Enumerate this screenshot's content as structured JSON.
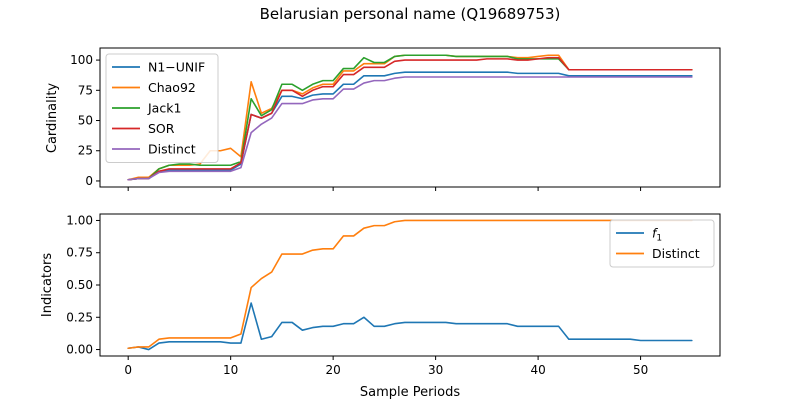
{
  "chart_data": {
    "title": "Belarusian personal name (Q19689753)",
    "xlabel": "Sample Periods",
    "x_ticks": [
      0,
      10,
      20,
      30,
      40,
      50
    ],
    "x_range": [
      -2.75,
      57.75
    ],
    "panels": [
      {
        "type": "line",
        "ylabel": "Cardinality",
        "ylim": [
          -5,
          110
        ],
        "y_ticks": [
          0,
          25,
          50,
          75,
          100
        ],
        "y_tick_labels": [
          "0",
          "25",
          "50",
          "75",
          "100"
        ],
        "show_x_tick_labels": false,
        "legend": "upper-left",
        "series": [
          {
            "name": "N1−UNIF",
            "color": "#1f77b4",
            "values": [
              1,
              2,
              2,
              8,
              9,
              9,
              9,
              9,
              9,
              9,
              9,
              14,
              55,
              52,
              56,
              70,
              70,
              68,
              71,
              72,
              72,
              80,
              80,
              87,
              87,
              87,
              89,
              90,
              90,
              90,
              90,
              90,
              90,
              90,
              90,
              90,
              90,
              90,
              89,
              89,
              89,
              89,
              89,
              87,
              87,
              87,
              87,
              87,
              87,
              87,
              87,
              87,
              87,
              87,
              87,
              87
            ]
          },
          {
            "name": "Chao92",
            "color": "#ff7f0e",
            "values": [
              1,
              3,
              3,
              10,
              13,
              13,
              13,
              14,
              25,
              25,
              27,
              20,
              82,
              56,
              60,
              75,
              75,
              72,
              77,
              80,
              80,
              91,
              91,
              97,
              97,
              97,
              103,
              104,
              104,
              104,
              104,
              104,
              103,
              103,
              103,
              103,
              103,
              103,
              102,
              102,
              103,
              104,
              104,
              92,
              92,
              92,
              92,
              92,
              92,
              92,
              92,
              92,
              92,
              92,
              92,
              92
            ]
          },
          {
            "name": "Jack1",
            "color": "#2ca02c",
            "values": [
              1,
              2,
              2,
              10,
              13,
              14,
              14,
              13,
              13,
              13,
              13,
              16,
              68,
              54,
              59,
              80,
              80,
              75,
              80,
              83,
              83,
              93,
              93,
              102,
              98,
              98,
              103,
              104,
              104,
              104,
              104,
              104,
              103,
              103,
              103,
              103,
              103,
              103,
              101,
              101,
              101,
              101,
              101,
              92,
              92,
              92,
              92,
              92,
              92,
              92,
              92,
              92,
              92,
              92,
              92,
              92
            ]
          },
          {
            "name": "SOR",
            "color": "#d62728",
            "values": [
              1,
              2,
              2,
              8,
              10,
              10,
              10,
              10,
              10,
              10,
              10,
              15,
              55,
              52,
              56,
              75,
              75,
              70,
              75,
              78,
              78,
              88,
              88,
              94,
              94,
              94,
              99,
              100,
              100,
              100,
              100,
              100,
              100,
              100,
              100,
              101,
              101,
              101,
              100,
              100,
              101,
              102,
              102,
              92,
              92,
              92,
              92,
              92,
              92,
              92,
              92,
              92,
              92,
              92,
              92,
              92
            ]
          },
          {
            "name": "Distinct",
            "color": "#9467bd",
            "values": [
              1,
              2,
              2,
              7,
              8,
              8,
              8,
              8,
              8,
              8,
              8,
              11,
              40,
              47,
              52,
              64,
              64,
              64,
              67,
              68,
              68,
              76,
              76,
              81,
              83,
              83,
              85,
              86,
              86,
              86,
              86,
              86,
              86,
              86,
              86,
              86,
              86,
              86,
              86,
              86,
              86,
              86,
              86,
              86,
              86,
              86,
              86,
              86,
              86,
              86,
              86,
              86,
              86,
              86,
              86,
              86
            ]
          }
        ]
      },
      {
        "type": "line",
        "ylabel": "Indicators",
        "ylim": [
          -0.05,
          1.05
        ],
        "y_ticks": [
          0,
          0.25,
          0.5,
          0.75,
          1.0
        ],
        "y_tick_labels": [
          "0.00",
          "0.25",
          "0.50",
          "0.75",
          "1.00"
        ],
        "show_x_tick_labels": true,
        "legend": "upper-right",
        "series": [
          {
            "name": "f1",
            "label_main": "f",
            "label_sub": "1",
            "color": "#1f77b4",
            "values": [
              0.01,
              0.02,
              0.0,
              0.05,
              0.06,
              0.06,
              0.06,
              0.06,
              0.06,
              0.06,
              0.05,
              0.05,
              0.36,
              0.08,
              0.1,
              0.21,
              0.21,
              0.15,
              0.17,
              0.18,
              0.18,
              0.2,
              0.2,
              0.25,
              0.18,
              0.18,
              0.2,
              0.21,
              0.21,
              0.21,
              0.21,
              0.21,
              0.2,
              0.2,
              0.2,
              0.2,
              0.2,
              0.2,
              0.18,
              0.18,
              0.18,
              0.18,
              0.18,
              0.08,
              0.08,
              0.08,
              0.08,
              0.08,
              0.08,
              0.08,
              0.07,
              0.07,
              0.07,
              0.07,
              0.07,
              0.07
            ]
          },
          {
            "name": "Distinct",
            "color": "#ff7f0e",
            "values": [
              0.01,
              0.02,
              0.02,
              0.08,
              0.09,
              0.09,
              0.09,
              0.09,
              0.09,
              0.09,
              0.09,
              0.12,
              0.48,
              0.55,
              0.6,
              0.74,
              0.74,
              0.74,
              0.77,
              0.78,
              0.78,
              0.88,
              0.88,
              0.94,
              0.96,
              0.96,
              0.99,
              1.0,
              1.0,
              1.0,
              1.0,
              1.0,
              1.0,
              1.0,
              1.0,
              1.0,
              1.0,
              1.0,
              1.0,
              1.0,
              1.0,
              1.0,
              1.0,
              1.0,
              1.0,
              1.0,
              1.0,
              1.0,
              1.0,
              1.0,
              1.0,
              1.0,
              1.0,
              1.0,
              1.0,
              1.0
            ]
          }
        ]
      }
    ]
  }
}
